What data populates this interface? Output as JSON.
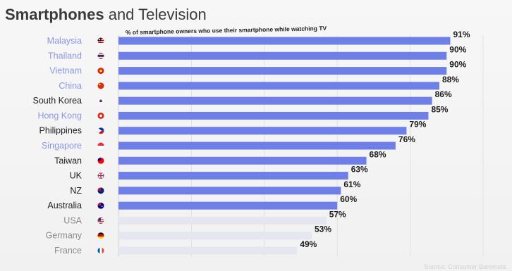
{
  "slide": {
    "title_bold": "Smartphones",
    "title_rest": " and Television",
    "source": "Source: Consumer Baromete"
  },
  "chart_data": {
    "type": "bar",
    "orientation": "horizontal",
    "title": "Smartphones and Television",
    "subtitle": "% of smartphone owners who use their smartphone while watching TV",
    "xlabel": "",
    "ylabel": "",
    "xlim": [
      0,
      100
    ],
    "grid": true,
    "categories": [
      "Malaysia",
      "Thailand",
      "Vietnam",
      "China",
      "South Korea",
      "Hong Kong",
      "Philippines",
      "Singapore",
      "Taiwan",
      "UK",
      "NZ",
      "Australia",
      "USA",
      "Germany",
      "France"
    ],
    "values": [
      91,
      90,
      90,
      88,
      86,
      85,
      79,
      76,
      68,
      63,
      61,
      60,
      57,
      53,
      49
    ],
    "value_labels": [
      "91%",
      "90%",
      "90%",
      "88%",
      "86%",
      "85%",
      "79%",
      "76%",
      "68%",
      "63%",
      "61%",
      "60%",
      "57%",
      "53%",
      "49%"
    ],
    "highlighted": [
      true,
      true,
      true,
      true,
      false,
      true,
      false,
      true,
      false,
      false,
      false,
      false,
      false,
      false,
      false
    ],
    "flags": [
      "malaysia-flag-icon",
      "thailand-flag-icon",
      "vietnam-flag-icon",
      "china-flag-icon",
      "south-korea-flag-icon",
      "hong-kong-flag-icon",
      "philippines-flag-icon",
      "singapore-flag-icon",
      "taiwan-flag-icon",
      "uk-flag-icon",
      "nz-flag-icon",
      "australia-flag-icon",
      "usa-flag-icon",
      "germany-flag-icon",
      "france-flag-icon"
    ],
    "colors": {
      "bar_primary": "#6f7fe8",
      "bar_muted": "#e4e6f0",
      "label_highlight": "#8a97e0",
      "label_dark": "#222222",
      "label_muted": "#8b8b8b"
    }
  }
}
